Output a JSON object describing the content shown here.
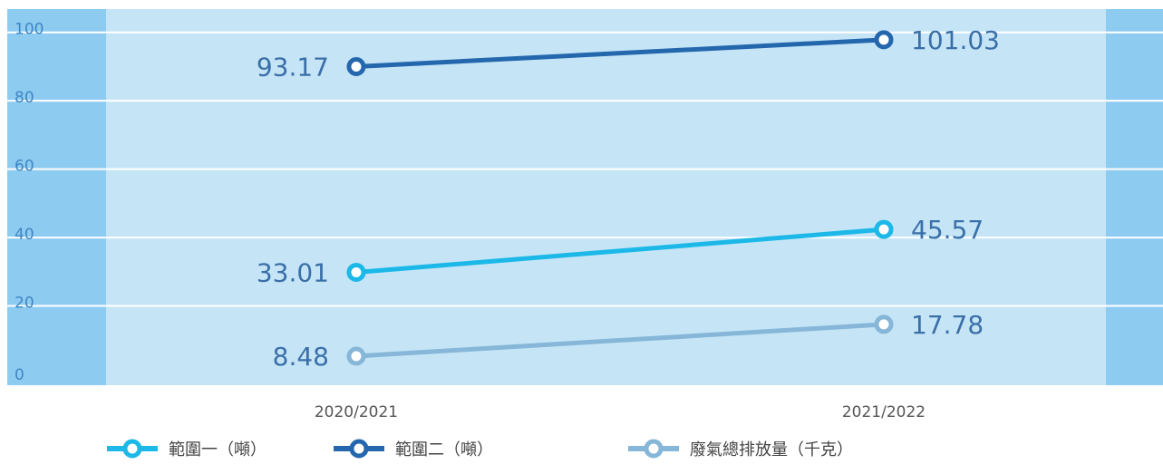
{
  "chart_data": {
    "type": "line",
    "categories": [
      "2020/2021",
      "2021/2022"
    ],
    "ylim": [
      0,
      110
    ],
    "y_ticks": [
      0,
      20,
      40,
      60,
      80,
      100
    ],
    "grid": true,
    "legend_position": "bottom",
    "series": [
      {
        "name": "範圍一（噸）",
        "values": [
          33.01,
          45.57
        ],
        "labels": [
          "33.01",
          "45.57"
        ],
        "color": "#1bb8e8"
      },
      {
        "name": "範圍二（噸）",
        "values": [
          93.17,
          101.03
        ],
        "labels": [
          "93.17",
          "101.03"
        ],
        "color": "#2467ad"
      },
      {
        "name": "廢氣總排放量（千克）",
        "values": [
          8.48,
          17.78
        ],
        "labels": [
          "8.48",
          "17.78"
        ],
        "color": "#86b6d8"
      }
    ]
  },
  "colors": {
    "outer_band": "#8ecbf0",
    "inner_band": "#c5e5f7",
    "gridline": "#ffffff"
  }
}
